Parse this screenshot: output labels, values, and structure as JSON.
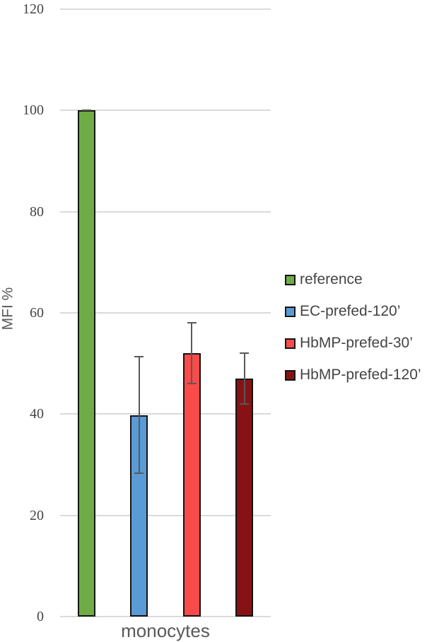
{
  "chart_data": {
    "type": "bar",
    "title": "",
    "categories": [
      "monocytes"
    ],
    "xlabel": "monocytes",
    "ylabel": "MFI %",
    "ylim": [
      0,
      120
    ],
    "yticks": [
      0,
      20,
      40,
      60,
      80,
      100,
      120
    ],
    "grid": true,
    "legend_position": "right",
    "series": [
      {
        "name": "reference",
        "value": 100,
        "error": 0,
        "color": "#6FAC45"
      },
      {
        "name": "EC-prefed-120’",
        "value": 39.8,
        "error": 11.5,
        "color": "#5B9BD5"
      },
      {
        "name": "HbMP-prefed-30’",
        "value": 52,
        "error": 6,
        "color": "#FA4B4B"
      },
      {
        "name": "HbMP-prefed-120’",
        "value": 47,
        "error": 5,
        "color": "#871213"
      }
    ],
    "colors": {
      "gridline": "#DADADA",
      "error_bar": "#595959",
      "bar_border": "#141414",
      "tick_text": "#444444",
      "label_text": "#595959"
    }
  }
}
